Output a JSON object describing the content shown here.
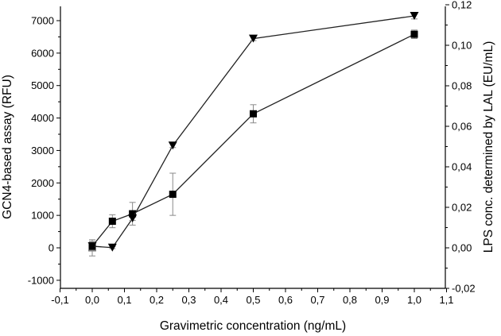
{
  "chart_data": {
    "type": "line",
    "xlabel": "Gravimetric concentration (ng/mL)",
    "ylabel": "GCN4-based assay (RFU)",
    "y2label": "LPS conc. determined by LAL (EU/mL)",
    "xlim": [
      -0.1,
      1.1
    ],
    "ylim": [
      -1000,
      7500
    ],
    "y2lim": [
      -0.02,
      0.12
    ],
    "x_ticks": [
      "-0,1",
      "0,0",
      "0,1",
      "0,2",
      "0,3",
      "0,4",
      "0,5",
      "0,6",
      "0,7",
      "0,8",
      "0,9",
      "1,0",
      "1,1"
    ],
    "y_ticks": [
      "-1000",
      "0",
      "1000",
      "2000",
      "3000",
      "4000",
      "5000",
      "6000",
      "7000"
    ],
    "y2_ticks": [
      "-0,02",
      "0,00",
      "0,02",
      "0,04",
      "0,06",
      "0,08",
      "0,10",
      "0,12"
    ],
    "grid": false,
    "series": [
      {
        "marker": "square",
        "axis": "left",
        "color": "#000000",
        "points": [
          {
            "x": 0.0,
            "y": 0,
            "err": 250
          },
          {
            "x": 0.0,
            "y": 50,
            "err": 150
          },
          {
            "x": 0.0625,
            "y": 820,
            "err": 200
          },
          {
            "x": 0.125,
            "y": 1050,
            "err": 350
          },
          {
            "x": 0.25,
            "y": 1650,
            "err": 650
          },
          {
            "x": 0.5,
            "y": 4130,
            "err": 280
          },
          {
            "x": 1.0,
            "y": 6580,
            "err": 130
          }
        ]
      },
      {
        "marker": "triangle-down",
        "axis": "right",
        "color": "#000000",
        "points": [
          {
            "x": 0.0,
            "y": 0.0008,
            "err": 0.002
          },
          {
            "x": 0.0625,
            "y": 0.0001,
            "err": 0.0005
          },
          {
            "x": 0.125,
            "y": 0.0145,
            "err": 0.001
          },
          {
            "x": 0.25,
            "y": 0.0505,
            "err": 0.001
          },
          {
            "x": 0.5,
            "y": 0.1033,
            "err": 0.001
          },
          {
            "x": 1.0,
            "y": 0.1145,
            "err": 0.0015
          }
        ]
      }
    ]
  }
}
